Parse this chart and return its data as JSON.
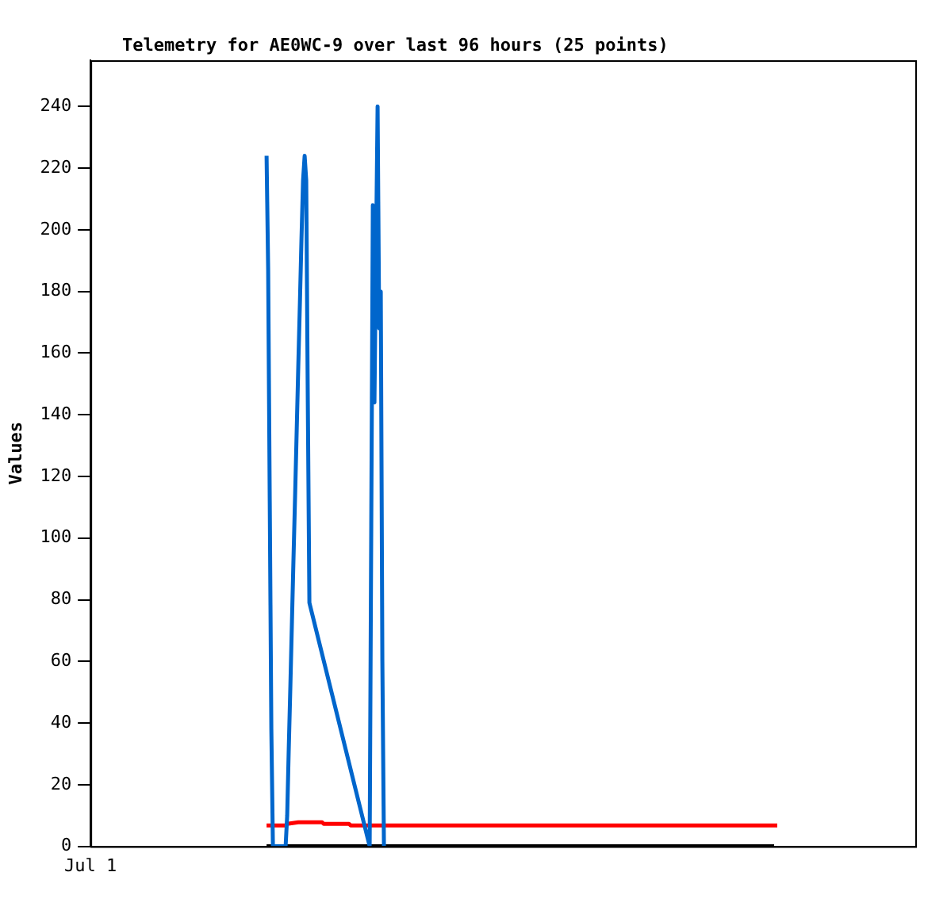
{
  "chart_data": {
    "type": "line",
    "title": "Telemetry for AE0WC-9 over last 96 hours (25 points)",
    "ylabel": "Values",
    "ylim": [
      0,
      255
    ],
    "yticks": [
      0,
      20,
      40,
      60,
      80,
      100,
      120,
      140,
      160,
      180,
      200,
      220,
      240
    ],
    "grid": false,
    "legend": false,
    "marker": "none",
    "line_style": "solid",
    "categories": [
      "Jul 1",
      null,
      null,
      null,
      null,
      null,
      null,
      null,
      null,
      null,
      null,
      null,
      null,
      null,
      null,
      null,
      null,
      null,
      null,
      null,
      null,
      null,
      null,
      null,
      null,
      null,
      null,
      null,
      null,
      null,
      null,
      null,
      null,
      null,
      null,
      null,
      null,
      null,
      null,
      null,
      null,
      null,
      null,
      null,
      null,
      null,
      null,
      null,
      null,
      null,
      null,
      null,
      null,
      null,
      null,
      null,
      null,
      null,
      null,
      null,
      null,
      null,
      null,
      null,
      null,
      null,
      null,
      null,
      null,
      null,
      null,
      null,
      null,
      null,
      null,
      null,
      null,
      null,
      null,
      null,
      null,
      null,
      null,
      null,
      null,
      null,
      null,
      null,
      null,
      null,
      null,
      null,
      null,
      null,
      null,
      null,
      null,
      null,
      null,
      null,
      null,
      null,
      null,
      null,
      null,
      null,
      null,
      null,
      null,
      null,
      null,
      null,
      null,
      null,
      null,
      null,
      null,
      null,
      null,
      null,
      null,
      null,
      null,
      null,
      null,
      null,
      null,
      null,
      null,
      null,
      null,
      null,
      null,
      null,
      null,
      null,
      null,
      null,
      null,
      null,
      null,
      null,
      null,
      null,
      null,
      null,
      null,
      null,
      null,
      null,
      null,
      null,
      null,
      null,
      null,
      null,
      null,
      null,
      null,
      null,
      null,
      null,
      null,
      null,
      null,
      null,
      null,
      null,
      null,
      null,
      null,
      null,
      null,
      null,
      null,
      null,
      null,
      null,
      null,
      null,
      null,
      null,
      null,
      null,
      null,
      null,
      null,
      null,
      null,
      null,
      null,
      null,
      null,
      null,
      null,
      null,
      null,
      null,
      null,
      null,
      null,
      null,
      null,
      null,
      null,
      null,
      null,
      null,
      null,
      null,
      null,
      null,
      null,
      null,
      null,
      null,
      null,
      null,
      null,
      null,
      null,
      null,
      null,
      null,
      null,
      null,
      null,
      null,
      null,
      null,
      null,
      null,
      null,
      null,
      null,
      null,
      null,
      null,
      null,
      null,
      null,
      null,
      null,
      null,
      null,
      null,
      null,
      null,
      null,
      null,
      null,
      null,
      null,
      null,
      null,
      null,
      null,
      null,
      null,
      null,
      null,
      null,
      null,
      null,
      null,
      null,
      null,
      null,
      null,
      null,
      null,
      null,
      null,
      null,
      null,
      null,
      null,
      null,
      null,
      null,
      null,
      null,
      null,
      null,
      null,
      null,
      null,
      null,
      null,
      null,
      null,
      null,
      null,
      null,
      null,
      null,
      null,
      null,
      null,
      null,
      null,
      null,
      null,
      null,
      null,
      null,
      null,
      null,
      null,
      null,
      null,
      null,
      null,
      null,
      null,
      null,
      null,
      null,
      null,
      null,
      null,
      null,
      null,
      null,
      null,
      null,
      null,
      null,
      null,
      null,
      null,
      null,
      null,
      null,
      null,
      null,
      null,
      null,
      null,
      null,
      null,
      null,
      null,
      null,
      null,
      null,
      null,
      null,
      null,
      null,
      null,
      null,
      null,
      null,
      null,
      null,
      null,
      null,
      null,
      null,
      null,
      null,
      null,
      null,
      null,
      null,
      null,
      null,
      null,
      null,
      null,
      null,
      null,
      null,
      null,
      null,
      null,
      null,
      null,
      null,
      null,
      null,
      null,
      null,
      null,
      null,
      null,
      null,
      null,
      null,
      null,
      null,
      null,
      null,
      null,
      null,
      null,
      null,
      null,
      null,
      null,
      null,
      null,
      null,
      null,
      null,
      null,
      null,
      null,
      null,
      null,
      null,
      null,
      null,
      null,
      null,
      null,
      null,
      null,
      null,
      null,
      null,
      null,
      null,
      null,
      null,
      null,
      null,
      null,
      null,
      null,
      null,
      null,
      null,
      null,
      null,
      null,
      null,
      null,
      null,
      null,
      null,
      null,
      null,
      null,
      null,
      null,
      null,
      null,
      null,
      null,
      null,
      null,
      null,
      null,
      null,
      null,
      null,
      null,
      null,
      null,
      null,
      null,
      null,
      null,
      null,
      null,
      null,
      null,
      null,
      null,
      null,
      null,
      null,
      null,
      null,
      null,
      null,
      null,
      null,
      null,
      null,
      null,
      null,
      null,
      null,
      null,
      null,
      null,
      null,
      null,
      null,
      null,
      null,
      null,
      null,
      null,
      null,
      null,
      null,
      null,
      null,
      null,
      null,
      null,
      null,
      null,
      null,
      null,
      null,
      null,
      null,
      null,
      null,
      null,
      null,
      null,
      null,
      null,
      null,
      null
    ],
    "series": [
      {
        "color": "#0066cc",
        "values": [
          null,
          null,
          null,
          null,
          null,
          null,
          null,
          null,
          null,
          null,
          null,
          null,
          null,
          null,
          null,
          null,
          null,
          null,
          null,
          null,
          null,
          null,
          null,
          null,
          null,
          null,
          null,
          null,
          null,
          null,
          null,
          null,
          null,
          null,
          null,
          null,
          null,
          null,
          null,
          null,
          null,
          null,
          null,
          null,
          null,
          null,
          null,
          null,
          null,
          null,
          null,
          null,
          null,
          null,
          null,
          null,
          null,
          null,
          null,
          null,
          null,
          null,
          null,
          null,
          null,
          null,
          null,
          null,
          null,
          null,
          null,
          null,
          null,
          null,
          null,
          null,
          null,
          null,
          null,
          null,
          null,
          null,
          null,
          null,
          null,
          null,
          null,
          null,
          null,
          null,
          null,
          null,
          null,
          null,
          null,
          null,
          null,
          null,
          null,
          null,
          null,
          null,
          null,
          null,
          null,
          null,
          null,
          null,
          null,
          null,
          null,
          224,
          187,
          112,
          38,
          0,
          null,
          null,
          null,
          null,
          null,
          null,
          null,
          0,
          10,
          32,
          52,
          73,
          94,
          114,
          135,
          156,
          176,
          197,
          216,
          224,
          216,
          144,
          79,
          null,
          null,
          null,
          null,
          null,
          null,
          null,
          null,
          null,
          null,
          null,
          null,
          null,
          null,
          null,
          null,
          null,
          null,
          null,
          null,
          null,
          null,
          null,
          null,
          null,
          null,
          null,
          null,
          null,
          null,
          null,
          null,
          null,
          null,
          null,
          null,
          null,
          0,
          104,
          208,
          144,
          192,
          240,
          168,
          180,
          60,
          0,
          null,
          null,
          null,
          null,
          null,
          null,
          null,
          null,
          null,
          null,
          null,
          null,
          null,
          null,
          null,
          null,
          null,
          null,
          null,
          null,
          null,
          null,
          null,
          null,
          null,
          null,
          null,
          null,
          null,
          null,
          null,
          null,
          null,
          null,
          null,
          null,
          null,
          null,
          null,
          null,
          null,
          null,
          null,
          null,
          null,
          null,
          null,
          null,
          null,
          null,
          null,
          null,
          null,
          null,
          null,
          null,
          null,
          null,
          null,
          null,
          null,
          null,
          null,
          null,
          null,
          null,
          null,
          null,
          null,
          null,
          null,
          null,
          null,
          null,
          null,
          null,
          null,
          null,
          null,
          null,
          null,
          null,
          null,
          null,
          null,
          null,
          null,
          null,
          null,
          null,
          null,
          null,
          null,
          null,
          null,
          null,
          null,
          null,
          null,
          null,
          null,
          null,
          null,
          null,
          null,
          null,
          null,
          null,
          null,
          null,
          null,
          null,
          null,
          null,
          null,
          null,
          null,
          null,
          null,
          null,
          null,
          null,
          null,
          null,
          null,
          null,
          null,
          null,
          null,
          null,
          null,
          null,
          null,
          null,
          null,
          null,
          null,
          null,
          null,
          null,
          null,
          null,
          null,
          null,
          null,
          null,
          null,
          null,
          null,
          null,
          null,
          null,
          null,
          null,
          null,
          null,
          null,
          null,
          null,
          null,
          null,
          null,
          null,
          null,
          null,
          null,
          null,
          null,
          null,
          null,
          null,
          null,
          null,
          null,
          null,
          null,
          null,
          null,
          null,
          null,
          null,
          null,
          null,
          null,
          null,
          null,
          null,
          null,
          null,
          null,
          null,
          null,
          null,
          null,
          null,
          null,
          null,
          null,
          null,
          null,
          null,
          null,
          null,
          null,
          null,
          null,
          null,
          null,
          null,
          null,
          null,
          null,
          null,
          null,
          null,
          null,
          null,
          null,
          null,
          null,
          null,
          null,
          null,
          null,
          null,
          null,
          null,
          null,
          null,
          null,
          null,
          null,
          null,
          null,
          null,
          null,
          null,
          null,
          null,
          null,
          null,
          null,
          null,
          null,
          null,
          null,
          null,
          null,
          null,
          null,
          null,
          null,
          null,
          null,
          null,
          null,
          null,
          null,
          null,
          null,
          null,
          null,
          null,
          null,
          null,
          null,
          null,
          null,
          null,
          null,
          null,
          null,
          null,
          null,
          null,
          null,
          null,
          null,
          null,
          null,
          null,
          null,
          null,
          null,
          null,
          null,
          null,
          null,
          null,
          null,
          null,
          null,
          null,
          null,
          null,
          null,
          null,
          null,
          null,
          null,
          null,
          null,
          null,
          null,
          null,
          null,
          null,
          null,
          null,
          null,
          null,
          null,
          null,
          null,
          null,
          null,
          null,
          null,
          null,
          null,
          null,
          null,
          null,
          null,
          null,
          null,
          null,
          null,
          null,
          null,
          null,
          null,
          null,
          null,
          null
        ]
      },
      {
        "color": "#ff0000",
        "values": [
          null,
          null,
          null,
          null,
          null,
          null,
          null,
          null,
          null,
          null,
          null,
          null,
          null,
          null,
          null,
          null,
          null,
          null,
          null,
          null,
          null,
          null,
          null,
          null,
          null,
          null,
          null,
          null,
          null,
          null,
          null,
          null,
          null,
          null,
          null,
          null,
          null,
          null,
          null,
          null,
          null,
          null,
          null,
          null,
          null,
          null,
          null,
          null,
          null,
          null,
          null,
          null,
          null,
          null,
          null,
          null,
          null,
          null,
          null,
          null,
          null,
          null,
          null,
          null,
          null,
          null,
          null,
          null,
          null,
          null,
          null,
          null,
          null,
          null,
          null,
          null,
          null,
          null,
          null,
          null,
          null,
          null,
          null,
          null,
          null,
          null,
          null,
          null,
          null,
          null,
          null,
          null,
          null,
          null,
          null,
          null,
          null,
          null,
          null,
          null,
          null,
          null,
          null,
          null,
          null,
          null,
          null,
          null,
          null,
          null,
          null,
          6.8,
          null,
          null,
          null,
          null,
          null,
          null,
          null,
          null,
          null,
          null,
          null,
          6.8,
          7.3,
          null,
          null,
          null,
          null,
          null,
          null,
          7.8,
          null,
          null,
          null,
          null,
          null,
          null,
          null,
          null,
          null,
          null,
          null,
          null,
          null,
          null,
          7.8,
          7.3,
          null,
          null,
          null,
          null,
          null,
          null,
          null,
          null,
          null,
          null,
          null,
          null,
          null,
          null,
          null,
          7.3,
          6.8,
          null,
          null,
          null,
          null,
          null,
          null,
          null,
          null,
          null,
          null,
          null,
          null,
          null,
          null,
          null,
          null,
          null,
          null,
          null,
          null,
          null,
          null,
          null,
          null,
          null,
          null,
          null,
          null,
          null,
          null,
          null,
          null,
          null,
          null,
          null,
          null,
          null,
          null,
          null,
          null,
          null,
          null,
          null,
          null,
          null,
          null,
          null,
          null,
          null,
          null,
          null,
          null,
          null,
          null,
          null,
          null,
          null,
          null,
          null,
          null,
          null,
          null,
          null,
          null,
          null,
          null,
          null,
          null,
          null,
          null,
          null,
          null,
          null,
          null,
          null,
          null,
          null,
          null,
          null,
          null,
          null,
          null,
          null,
          null,
          null,
          null,
          null,
          null,
          null,
          null,
          null,
          null,
          null,
          null,
          null,
          null,
          null,
          null,
          null,
          null,
          null,
          null,
          null,
          null,
          null,
          null,
          null,
          null,
          null,
          null,
          null,
          null,
          null,
          null,
          null,
          null,
          null,
          null,
          null,
          null,
          null,
          null,
          null,
          null,
          null,
          null,
          null,
          null,
          null,
          null,
          null,
          null,
          null,
          null,
          null,
          null,
          null,
          null,
          null,
          null,
          null,
          null,
          null,
          null,
          null,
          null,
          null,
          null,
          null,
          null,
          null,
          null,
          null,
          null,
          null,
          null,
          null,
          null,
          null,
          null,
          null,
          null,
          null,
          null,
          null,
          null,
          null,
          null,
          null,
          null,
          null,
          null,
          null,
          null,
          null,
          null,
          null,
          null,
          null,
          null,
          null,
          null,
          null,
          null,
          null,
          null,
          null,
          null,
          null,
          null,
          null,
          null,
          null,
          null,
          null,
          null,
          null,
          null,
          null,
          null,
          null,
          null,
          null,
          null,
          null,
          null,
          null,
          null,
          null,
          null,
          null,
          null,
          null,
          null,
          null,
          null,
          null,
          null,
          null,
          null,
          null,
          null,
          null,
          null,
          null,
          null,
          null,
          null,
          null,
          null,
          null,
          null,
          null,
          null,
          null,
          null,
          null,
          null,
          null,
          null,
          null,
          null,
          null,
          null,
          null,
          null,
          null,
          null,
          null,
          null,
          null,
          null,
          null,
          null,
          null,
          null,
          null,
          null,
          null,
          null,
          null,
          null,
          null,
          null,
          null,
          null,
          null,
          null,
          6.8,
          null,
          null,
          null,
          null,
          null,
          null,
          null,
          null,
          null,
          null,
          null,
          null,
          null,
          null,
          null,
          null,
          null,
          null,
          null,
          null,
          null,
          null,
          null,
          null,
          null,
          null,
          null,
          null,
          null,
          null,
          null,
          null,
          null,
          null,
          null,
          null,
          null,
          null,
          null,
          null,
          null,
          null,
          null,
          null,
          null,
          null,
          null,
          null,
          null,
          null,
          null,
          null,
          null,
          null,
          null,
          null,
          null,
          null,
          null,
          null,
          null,
          null,
          null,
          null,
          null,
          null,
          null,
          null,
          null,
          null,
          null,
          null,
          null,
          null,
          null,
          null,
          null,
          null,
          null,
          null,
          null,
          null,
          null,
          null,
          null,
          null,
          null
        ]
      },
      {
        "color": "#000000",
        "values": [
          null,
          null,
          null,
          null,
          null,
          null,
          null,
          null,
          null,
          null,
          null,
          null,
          null,
          null,
          null,
          null,
          null,
          null,
          null,
          null,
          null,
          null,
          null,
          null,
          null,
          null,
          null,
          null,
          null,
          null,
          null,
          null,
          null,
          null,
          null,
          null,
          null,
          null,
          null,
          null,
          null,
          null,
          null,
          null,
          null,
          null,
          null,
          null,
          null,
          null,
          null,
          null,
          null,
          null,
          null,
          null,
          null,
          null,
          null,
          null,
          null,
          null,
          null,
          null,
          null,
          null,
          null,
          null,
          null,
          null,
          null,
          null,
          null,
          null,
          null,
          null,
          null,
          null,
          null,
          null,
          null,
          null,
          null,
          null,
          null,
          null,
          null,
          null,
          null,
          null,
          null,
          null,
          null,
          null,
          null,
          null,
          null,
          null,
          null,
          null,
          null,
          null,
          null,
          null,
          null,
          null,
          null,
          null,
          null,
          null,
          null,
          0,
          null,
          null,
          null,
          null,
          null,
          null,
          null,
          null,
          null,
          null,
          null,
          null,
          null,
          null,
          null,
          null,
          null,
          null,
          null,
          null,
          null,
          null,
          null,
          null,
          null,
          null,
          null,
          null,
          null,
          null,
          null,
          null,
          null,
          null,
          null,
          null,
          null,
          null,
          null,
          null,
          null,
          null,
          null,
          null,
          null,
          null,
          null,
          null,
          null,
          null,
          null,
          null,
          null,
          null,
          null,
          null,
          null,
          null,
          null,
          null,
          null,
          null,
          null,
          null,
          null,
          null,
          null,
          null,
          null,
          null,
          null,
          null,
          null,
          null,
          null,
          null,
          null,
          null,
          null,
          null,
          null,
          null,
          null,
          null,
          null,
          null,
          null,
          null,
          null,
          null,
          null,
          null,
          null,
          null,
          null,
          null,
          null,
          null,
          null,
          null,
          null,
          null,
          null,
          null,
          null,
          null,
          null,
          null,
          null,
          null,
          null,
          null,
          null,
          null,
          null,
          null,
          null,
          null,
          null,
          null,
          null,
          null,
          null,
          null,
          null,
          null,
          null,
          null,
          null,
          null,
          null,
          null,
          null,
          null,
          null,
          null,
          null,
          null,
          null,
          null,
          null,
          null,
          null,
          null,
          null,
          null,
          null,
          null,
          null,
          null,
          null,
          null,
          null,
          null,
          null,
          null,
          null,
          null,
          null,
          null,
          null,
          null,
          null,
          null,
          null,
          null,
          null,
          null,
          null,
          null,
          null,
          null,
          null,
          null,
          null,
          null,
          null,
          null,
          null,
          null,
          null,
          null,
          null,
          null,
          null,
          null,
          null,
          null,
          null,
          null,
          null,
          null,
          null,
          null,
          null,
          null,
          null,
          null,
          null,
          null,
          null,
          null,
          null,
          null,
          null,
          null,
          null,
          null,
          null,
          null,
          null,
          null,
          null,
          null,
          null,
          null,
          null,
          null,
          null,
          null,
          null,
          null,
          null,
          null,
          null,
          null,
          null,
          null,
          null,
          null,
          null,
          null,
          null,
          null,
          null,
          null,
          null,
          null,
          null,
          null,
          null,
          null,
          null,
          null,
          null,
          null,
          null,
          null,
          null,
          null,
          null,
          null,
          null,
          null,
          null,
          null,
          null,
          null,
          null,
          null,
          null,
          null,
          null,
          null,
          null,
          null,
          null,
          null,
          null,
          null,
          null,
          null,
          null,
          null,
          null,
          null,
          null,
          null,
          null,
          null,
          null,
          null,
          null,
          null,
          null,
          null,
          null,
          null,
          null,
          null,
          null,
          null,
          null,
          null,
          null,
          null,
          null,
          null,
          null,
          null,
          null,
          null,
          null,
          null,
          null,
          null,
          null,
          null,
          null,
          null,
          null,
          null,
          null,
          null,
          null,
          null,
          null,
          null,
          null,
          0,
          null,
          null,
          null,
          null,
          null,
          null,
          null,
          null,
          null,
          null,
          null,
          null,
          null,
          null,
          null,
          null,
          null,
          null,
          null,
          null,
          null,
          null,
          null,
          null,
          null,
          null,
          null,
          null,
          null,
          null,
          null,
          null,
          null,
          null,
          null,
          null,
          null,
          null,
          null,
          null,
          null,
          null,
          null,
          null,
          null,
          null,
          null,
          null,
          null,
          null,
          null,
          null,
          null,
          null,
          null,
          null,
          null,
          null,
          null,
          null,
          null,
          null,
          null,
          null,
          null,
          null,
          null,
          null,
          null,
          null,
          null,
          null,
          null,
          null,
          null,
          null,
          null,
          null,
          null,
          null,
          null,
          null,
          null,
          null,
          null,
          null,
          null,
          null,
          null
        ]
      }
    ]
  }
}
